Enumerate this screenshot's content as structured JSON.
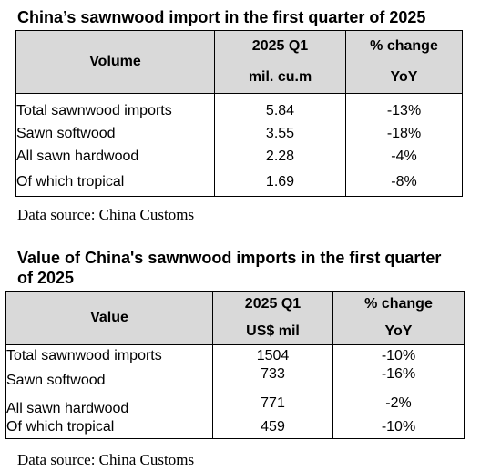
{
  "table1": {
    "title": "China’s sawnwood import in the first quarter of 2025",
    "header": {
      "col1": "Volume",
      "col2_line1": "2025 Q1",
      "col2_line2": "mil. cu.m",
      "col3_line1": "% change",
      "col3_line2": "YoY"
    },
    "rows": [
      {
        "label": "Total sawnwood imports",
        "value": "5.84",
        "change": "-13%"
      },
      {
        "label": "Sawn softwood",
        "value": "3.55",
        "change": "-18%"
      },
      {
        "label": "All sawn hardwood",
        "value": "2.28",
        "change": "-4%"
      },
      {
        "label": "Of which tropical",
        "value": "1.69",
        "change": "-8%"
      }
    ],
    "source": "Data source: China Customs"
  },
  "table2": {
    "title_line1": "Value of China's sawnwood imports in the first quarter",
    "title_line2": "of 2025",
    "header": {
      "col1": "Value",
      "col2_line1": "2025 Q1",
      "col2_line2": "US$ mil",
      "col3_line1": "% change",
      "col3_line2": "YoY"
    },
    "rows": [
      {
        "label": "Total sawnwood imports",
        "value": "1504",
        "change": "-10%"
      },
      {
        "label": "Sawn softwood",
        "value": "733",
        "change": "-16%"
      },
      {
        "label": "All sawn hardwood",
        "value": "771",
        "change": "-2%"
      },
      {
        "label": "Of which tropical",
        "value": "459",
        "change": "-10%"
      }
    ],
    "source": "Data source: China Customs"
  }
}
